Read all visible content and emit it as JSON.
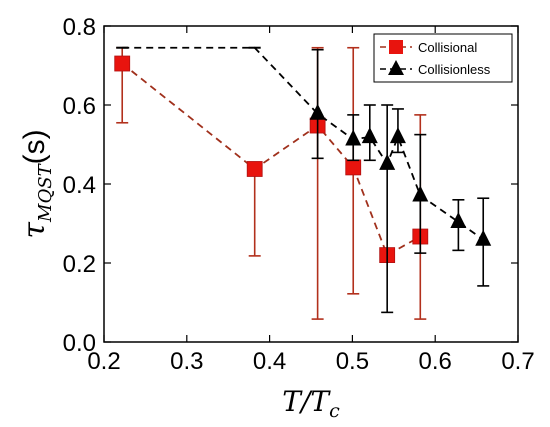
{
  "chart_data": {
    "type": "scatter",
    "xlabel": "T/T_c",
    "ylabel": "τ_MQST (s)",
    "xlim": [
      0.2,
      0.7
    ],
    "ylim": [
      0.0,
      0.8
    ],
    "xticks": [
      "0.2",
      "0.3",
      "0.4",
      "0.5",
      "0.6",
      "0.7"
    ],
    "yticks": [
      "0.0",
      "0.2",
      "0.4",
      "0.6",
      "0.8"
    ],
    "grid": false,
    "legend_position": "top-right",
    "series": [
      {
        "name": "Collisional",
        "marker": "square",
        "line_style": "dashed",
        "color": "#e8140e",
        "line_color": "#a0301c",
        "errorbar_color": "#b2301c",
        "x": [
          0.222,
          0.382,
          0.458,
          0.501,
          0.542,
          0.582
        ],
        "y": [
          0.705,
          0.438,
          0.548,
          0.442,
          0.22,
          0.267
        ],
        "yerr_low": [
          0.555,
          0.218,
          0.058,
          0.122,
          0.205,
          0.058
        ],
        "yerr_high": [
          0.745,
          0.438,
          0.745,
          0.745,
          0.23,
          0.575
        ]
      },
      {
        "name": "Collisionless",
        "marker": "triangle",
        "line_style": "dashed",
        "color": "#000000",
        "line_color": "#000000",
        "errorbar_color": "#000000",
        "x": [
          0.222,
          0.382,
          0.458,
          0.501,
          0.521,
          0.542,
          0.555,
          0.582,
          0.628,
          0.658
        ],
        "y": [
          0.745,
          0.745,
          0.578,
          0.513,
          0.519,
          0.451,
          0.519,
          0.371,
          0.304,
          0.259
        ],
        "yerr_low": [
          0.745,
          0.745,
          0.465,
          0.46,
          0.46,
          0.075,
          0.48,
          0.225,
          0.232,
          0.142
        ],
        "yerr_high": [
          0.745,
          0.745,
          0.74,
          0.575,
          0.6,
          0.6,
          0.59,
          0.525,
          0.36,
          0.364
        ]
      }
    ]
  }
}
